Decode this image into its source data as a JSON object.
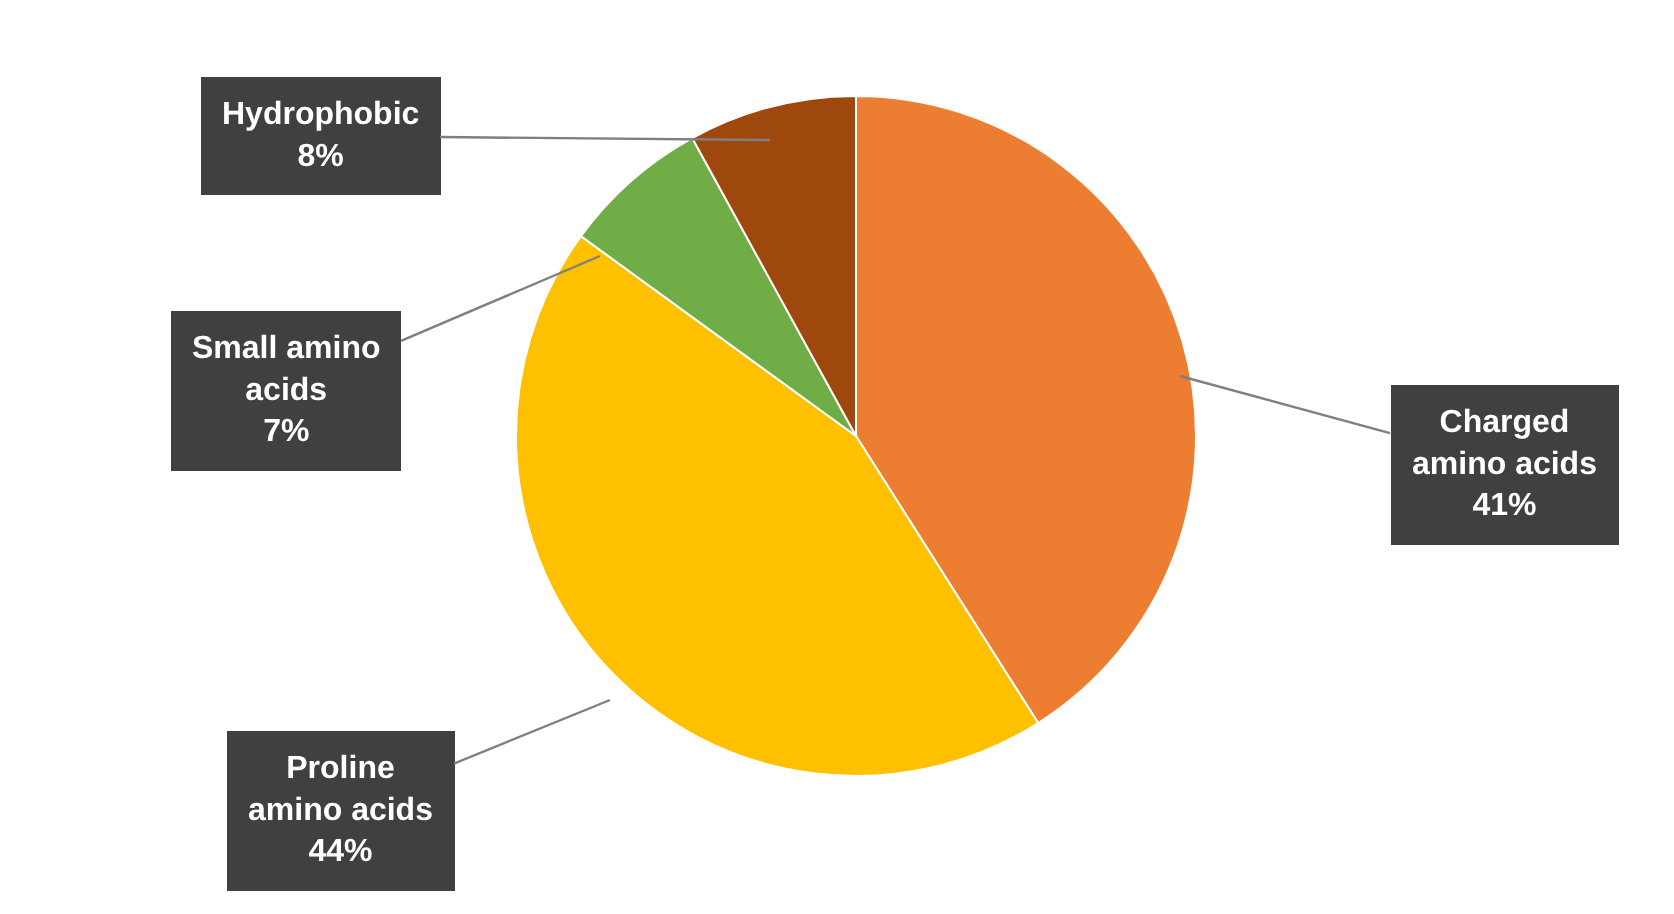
{
  "chart_data": {
    "type": "pie",
    "categories": [
      "Charged amino acids",
      "Proline amino acids",
      "Small amino acids",
      "Hydrophobic"
    ],
    "values": [
      41,
      44,
      7,
      8
    ],
    "colors": [
      "#ed7d31",
      "#ffc000",
      "#70ad47",
      "#9e480e"
    ],
    "value_labels": [
      "41%",
      "44%",
      "7%",
      "8%"
    ],
    "legend": false
  }
}
